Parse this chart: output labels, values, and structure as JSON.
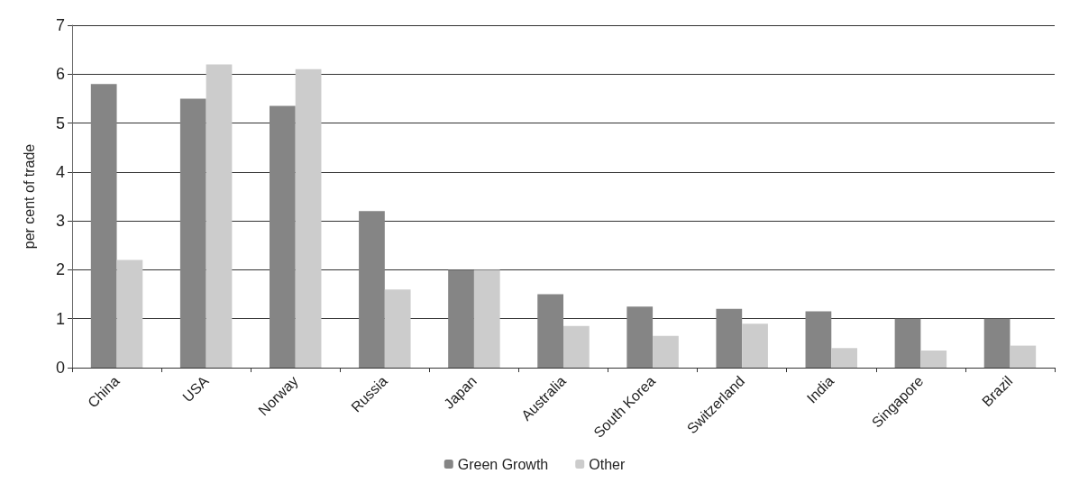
{
  "chart_data": {
    "type": "bar",
    "ylabel": "per cent of trade",
    "categories": [
      "China",
      "USA",
      "Norway",
      "Russia",
      "Japan",
      "Australia",
      "South Korea",
      "Switzerland",
      "India",
      "Singapore",
      "Brazil"
    ],
    "series": [
      {
        "name": "Green Growth",
        "color": "#858585",
        "values": [
          5.8,
          5.5,
          5.35,
          3.2,
          2.0,
          1.5,
          1.25,
          1.2,
          1.15,
          1.0,
          1.0
        ]
      },
      {
        "name": "Other",
        "color": "#cccccc",
        "values": [
          2.2,
          6.2,
          6.1,
          1.6,
          2.0,
          0.85,
          0.65,
          0.9,
          0.4,
          0.35,
          0.45
        ]
      }
    ],
    "ylim": [
      0,
      7
    ],
    "yticks": [
      0,
      1,
      2,
      3,
      4,
      5,
      6,
      7
    ],
    "grid": "y",
    "legend": "bottom"
  }
}
